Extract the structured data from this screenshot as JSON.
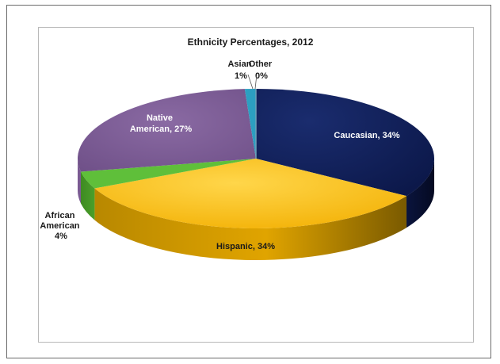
{
  "chart_data": {
    "type": "pie",
    "title": "Ethnicity Percentages, 2012",
    "categories": [
      "Caucasian",
      "Hispanic",
      "African American",
      "Native American",
      "Asian",
      "Other"
    ],
    "values": [
      34,
      34,
      4,
      27,
      1,
      0
    ],
    "colors": [
      "#0d1b4f",
      "#f7b500",
      "#5fbf3a",
      "#7a5a92",
      "#2c9fc1",
      "#6fa0b8"
    ],
    "labels": {
      "caucasian": [
        "Caucasian, 34%"
      ],
      "hispanic": [
        "Hispanic, 34%"
      ],
      "african_american": [
        "African",
        "American",
        "4%"
      ],
      "native_american": [
        "Native",
        "American, 27%"
      ],
      "asian": [
        "Asian",
        "1%"
      ],
      "other": [
        "Other",
        "0%"
      ]
    },
    "style": "3d-pie",
    "legend": "none"
  }
}
